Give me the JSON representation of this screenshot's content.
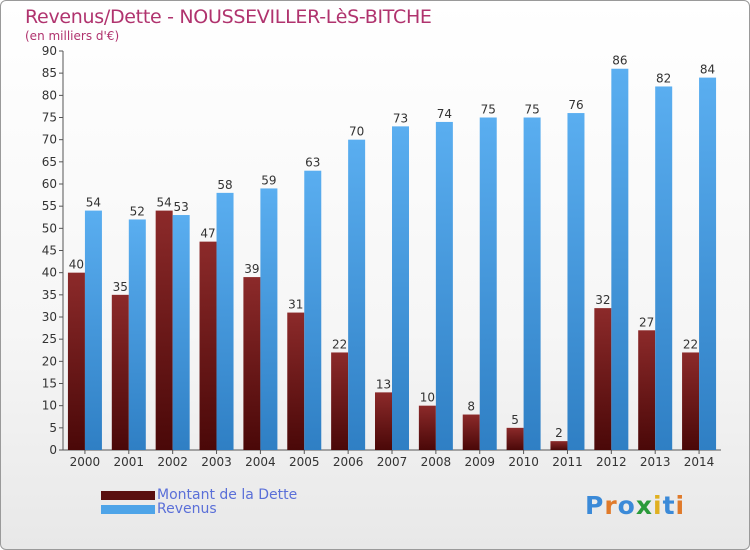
{
  "title": "Revenus/Dette - NOUSSEVILLER-LèS-BITCHE",
  "subtitle": "(en milliers d'€)",
  "colors": {
    "dette": "#7a1f1f",
    "revenus": "#4ea4e8",
    "title": "#b0336e",
    "legend_text": "#5a6fd8"
  },
  "legend": [
    {
      "label": "Montant de la Dette",
      "color": "#5a1010"
    },
    {
      "label": "Revenus",
      "color": "#4ea4e8"
    }
  ],
  "logo": {
    "letters": [
      {
        "ch": "P",
        "color": "#3b8ad8"
      },
      {
        "ch": "r",
        "color": "#e07a2a"
      },
      {
        "ch": "o",
        "color": "#3b8ad8"
      },
      {
        "ch": "x",
        "color": "#2a9a3a"
      },
      {
        "ch": "i",
        "color": "#e0b020"
      },
      {
        "ch": "t",
        "color": "#3b8ad8"
      },
      {
        "ch": "i",
        "color": "#e07a2a"
      }
    ]
  },
  "chart_data": {
    "type": "bar",
    "categories": [
      "2000",
      "2001",
      "2002",
      "2003",
      "2004",
      "2005",
      "2006",
      "2007",
      "2008",
      "2009",
      "2010",
      "2011",
      "2012",
      "2013",
      "2014"
    ],
    "series": [
      {
        "name": "Montant de la Dette",
        "values": [
          40,
          35,
          54,
          47,
          39,
          31,
          22,
          13,
          10,
          8,
          5,
          2,
          32,
          27,
          22
        ]
      },
      {
        "name": "Revenus",
        "values": [
          54,
          52,
          53,
          58,
          59,
          63,
          70,
          73,
          74,
          75,
          75,
          76,
          86,
          82,
          84
        ]
      }
    ],
    "title": "Revenus/Dette - NOUSSEVILLER-LèS-BITCHE",
    "subtitle": "(en milliers d'€)",
    "ylim": [
      0,
      90
    ],
    "ytick_step": 5,
    "grid": false,
    "legend_position": "bottom-left"
  }
}
